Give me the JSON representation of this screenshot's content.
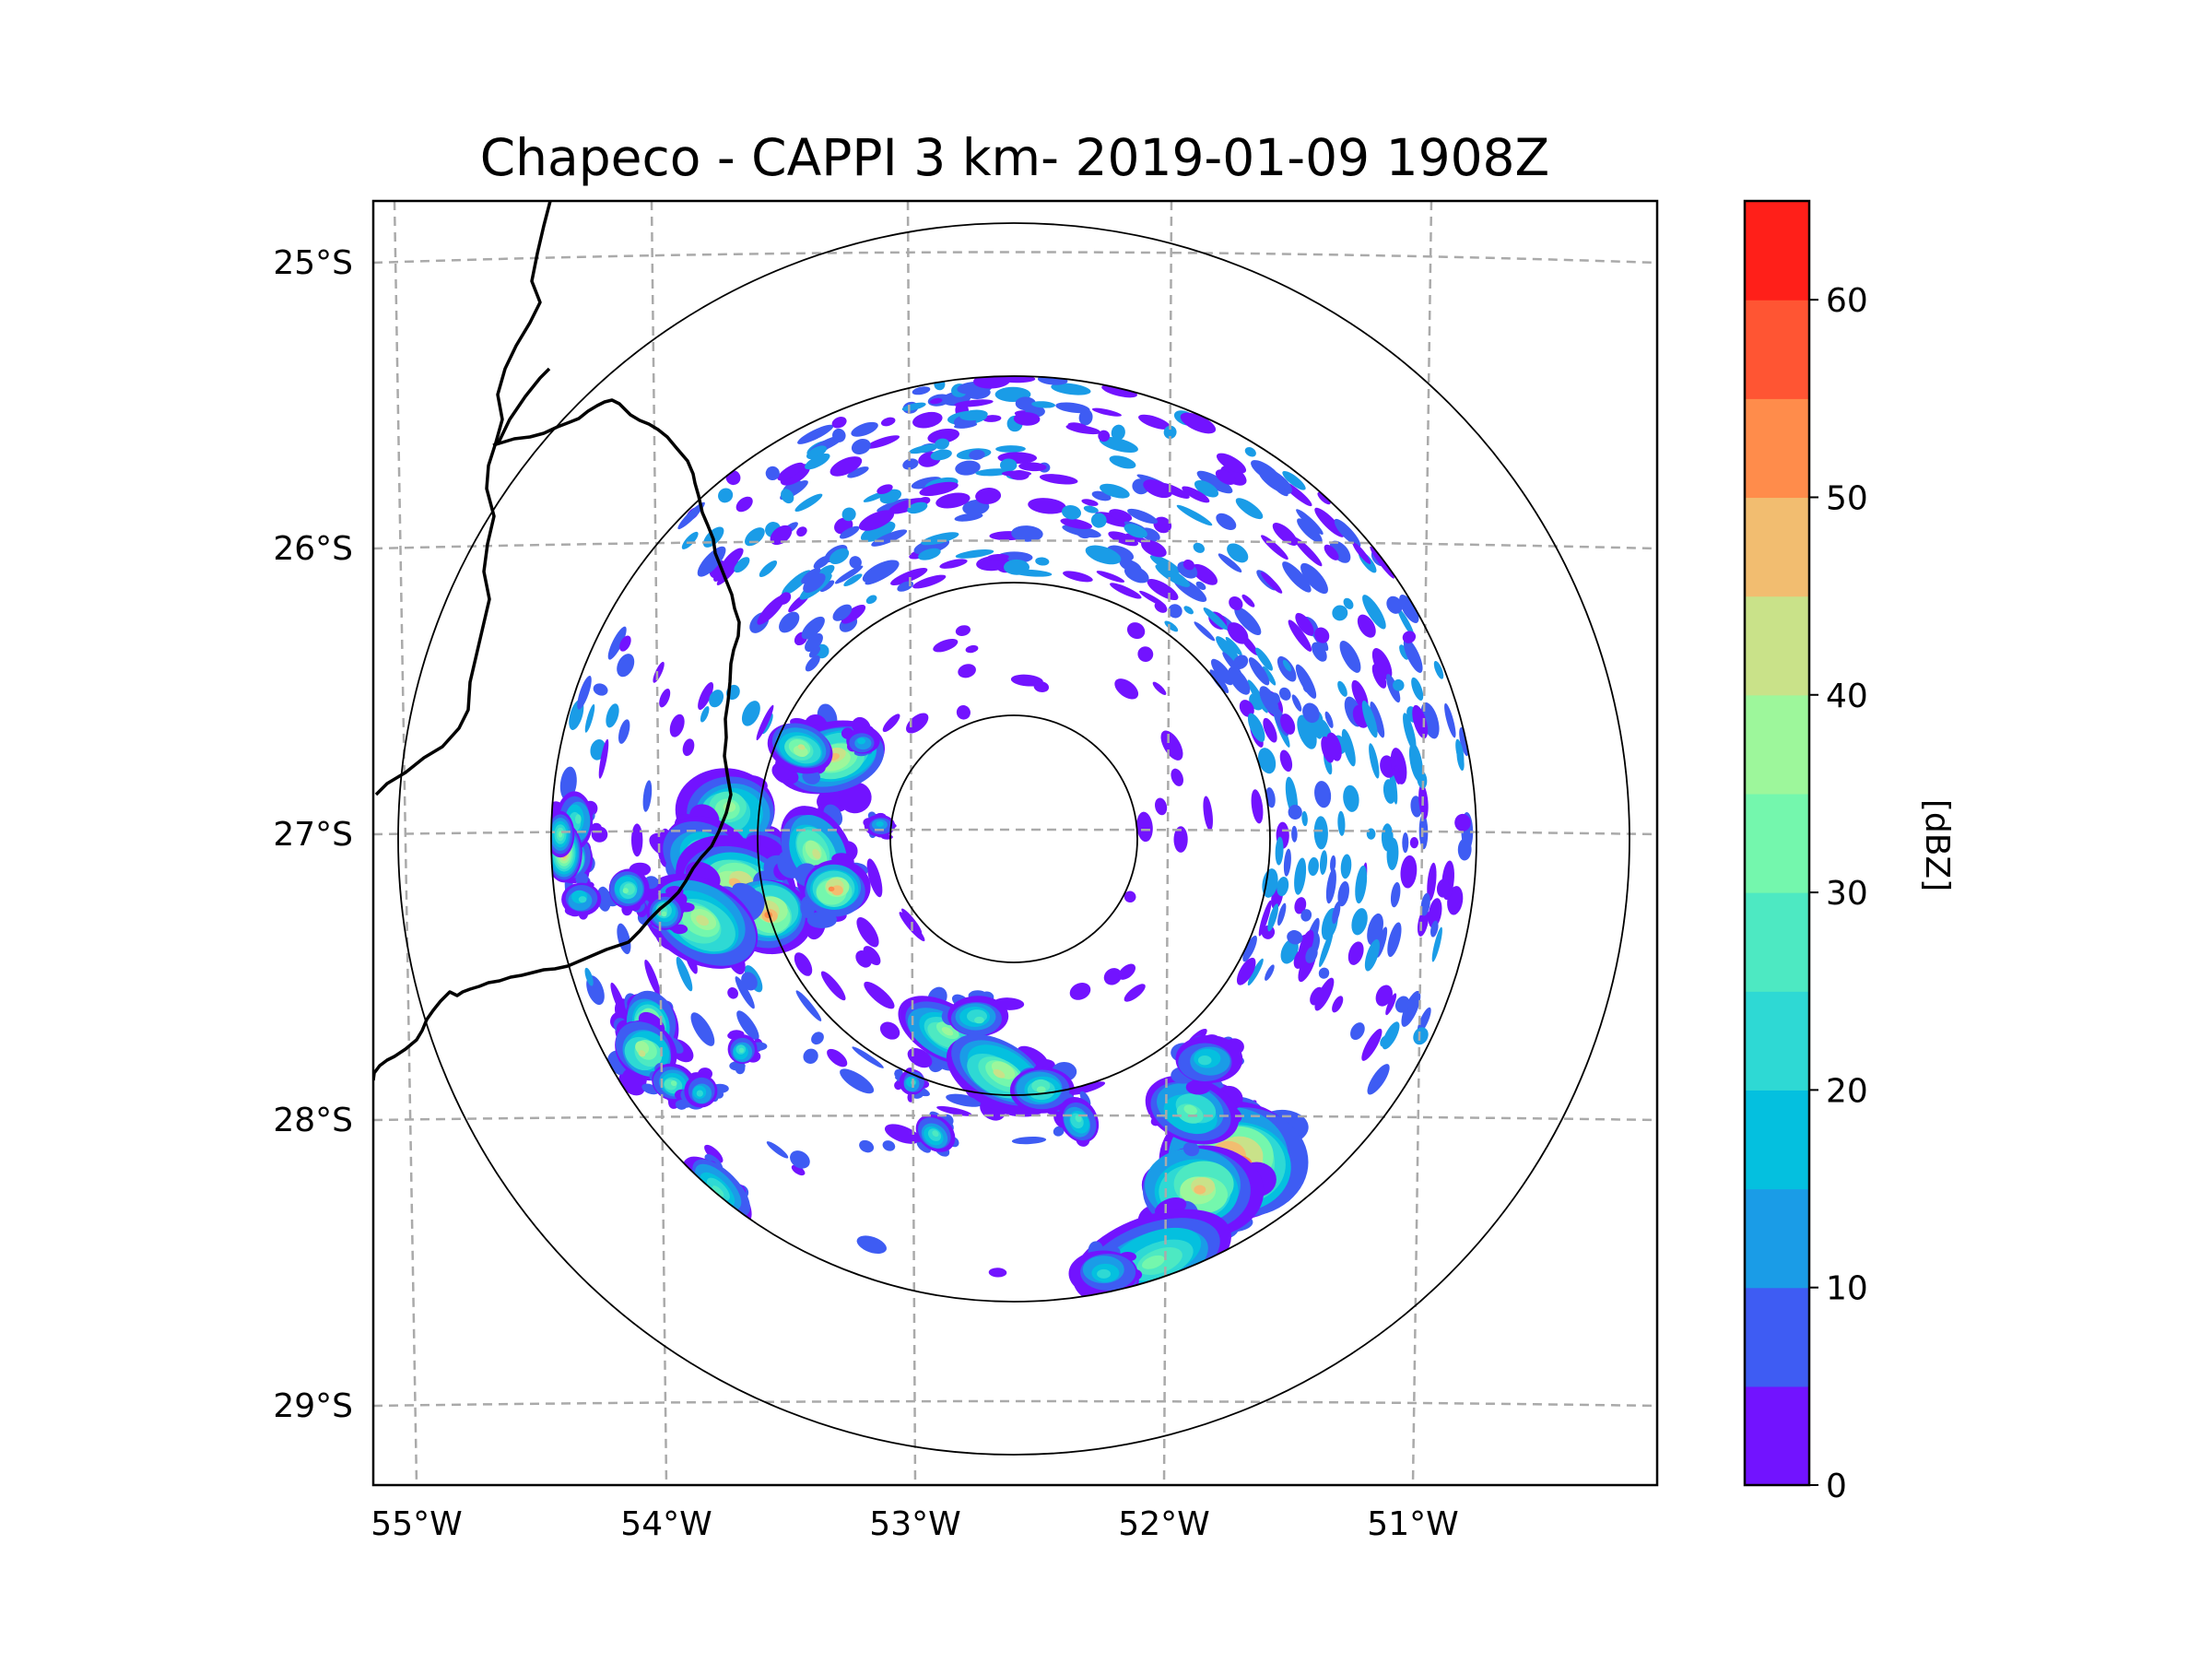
{
  "title": "Chapeco - CAPPI 3 km- 2019-01-09 1908Z",
  "axes": {
    "lat_ticks": [
      "25°S",
      "26°S",
      "27°S",
      "28°S",
      "29°S"
    ],
    "lon_ticks": [
      "55°W",
      "54°W",
      "53°W",
      "52°W",
      "51°W"
    ]
  },
  "colorbar": {
    "label": "[dBZ]",
    "min": 0,
    "max": 65,
    "step": 5,
    "ticks": [
      "0",
      "10",
      "20",
      "30",
      "40",
      "50",
      "60"
    ],
    "colors": [
      "#7213ff",
      "#3e5cf3",
      "#1a9ce7",
      "#04c0df",
      "#2ed9d4",
      "#4de9c2",
      "#74f7ad",
      "#9df79b",
      "#c9e289",
      "#f2bd70",
      "#ff8c4b",
      "#ff5533",
      "#ff1f19"
    ]
  },
  "map": {
    "radar_site": "Chapeco",
    "range_rings": 4,
    "features": [
      "international borders",
      "state border",
      "lat/lon gridlines",
      "reflectivity echoes"
    ]
  }
}
